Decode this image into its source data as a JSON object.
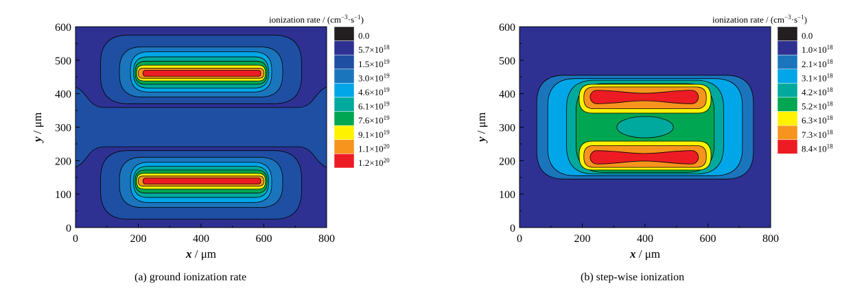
{
  "chart_data": [
    {
      "type": "contour",
      "caption": "(a)  ground ionization rate",
      "xlabel": {
        "italic": "x",
        "rest": " / μm"
      },
      "ylabel": {
        "italic": "y",
        "rest": " / μm"
      },
      "xlim": [
        0,
        800
      ],
      "ylim": [
        0,
        600
      ],
      "xticks": [
        "0",
        "200",
        "400",
        "600",
        "800"
      ],
      "yticks": [
        "0",
        "100",
        "200",
        "300",
        "400",
        "500",
        "600"
      ],
      "colorbar": {
        "title": "ionization rate / (cm",
        "title_sup1": "−3",
        "title_mid": "·s",
        "title_sup2": "−1",
        "title_end": ")",
        "colors": [
          "#231f20",
          "#2e3192",
          "#1f4fa3",
          "#1b75bc",
          "#00a6e8",
          "#00a99d",
          "#00a651",
          "#fff200",
          "#f7941d",
          "#ed1c24"
        ],
        "levels": [
          {
            "mant": "0.0",
            "exp": ""
          },
          {
            "mant": "5.7",
            "exp": "18"
          },
          {
            "mant": "1.5",
            "exp": "19"
          },
          {
            "mant": "3.0",
            "exp": "19"
          },
          {
            "mant": "4.6",
            "exp": "19"
          },
          {
            "mant": "6.1",
            "exp": "19"
          },
          {
            "mant": "7.6",
            "exp": "19"
          },
          {
            "mant": "9.1",
            "exp": "19"
          },
          {
            "mant": "1.1",
            "exp": "20"
          },
          {
            "mant": "1.2",
            "exp": "20"
          }
        ]
      },
      "regions": [
        {
          "level": 2,
          "x0": 0,
          "x1": 800,
          "y0": 180,
          "y1": 420,
          "side_notch": true
        },
        {
          "level": 2,
          "x0": 80,
          "x1": 720,
          "y0": 25,
          "y1": 230
        },
        {
          "level": 2,
          "x0": 80,
          "x1": 720,
          "y0": 370,
          "y1": 575
        },
        {
          "level": 3,
          "x0": 140,
          "x1": 660,
          "y0": 60,
          "y1": 210
        },
        {
          "level": 4,
          "x0": 175,
          "x1": 625,
          "y0": 75,
          "y1": 195
        },
        {
          "level": 5,
          "x0": 185,
          "x1": 615,
          "y0": 90,
          "y1": 183
        },
        {
          "level": 6,
          "x0": 190,
          "x1": 610,
          "y0": 103,
          "y1": 172
        },
        {
          "level": 7,
          "x0": 195,
          "x1": 605,
          "y0": 115,
          "y1": 162
        },
        {
          "level": 8,
          "x0": 200,
          "x1": 600,
          "y0": 124,
          "y1": 154
        },
        {
          "level": 9,
          "x0": 215,
          "x1": 590,
          "y0": 130,
          "y1": 148
        },
        {
          "level": 3,
          "x0": 140,
          "x1": 660,
          "y0": 390,
          "y1": 540
        },
        {
          "level": 4,
          "x0": 175,
          "x1": 625,
          "y0": 405,
          "y1": 525
        },
        {
          "level": 5,
          "x0": 185,
          "x1": 615,
          "y0": 417,
          "y1": 510
        },
        {
          "level": 6,
          "x0": 190,
          "x1": 610,
          "y0": 428,
          "y1": 497
        },
        {
          "level": 7,
          "x0": 195,
          "x1": 605,
          "y0": 438,
          "y1": 485
        },
        {
          "level": 8,
          "x0": 200,
          "x1": 600,
          "y0": 446,
          "y1": 476
        },
        {
          "level": 9,
          "x0": 215,
          "x1": 590,
          "y0": 452,
          "y1": 470
        }
      ]
    },
    {
      "type": "contour",
      "caption": "(b) step-wise ionization",
      "xlabel": {
        "italic": "x",
        "rest": " / μm"
      },
      "ylabel": {
        "italic": "y",
        "rest": " / μm"
      },
      "xlim": [
        0,
        800
      ],
      "ylim": [
        0,
        600
      ],
      "xticks": [
        "0",
        "200",
        "400",
        "600",
        "800"
      ],
      "yticks": [
        "0",
        "100",
        "200",
        "300",
        "400",
        "500",
        "600"
      ],
      "colorbar": {
        "title": "ionization rate / (cm",
        "title_sup1": "−3",
        "title_mid": "·s",
        "title_sup2": "−1",
        "title_end": ")",
        "colors": [
          "#231f20",
          "#2e3192",
          "#1b75bc",
          "#00a6e8",
          "#00a99d",
          "#00a651",
          "#fff200",
          "#f7941d",
          "#ed1c24"
        ],
        "levels": [
          {
            "mant": "0.0",
            "exp": ""
          },
          {
            "mant": "1.0",
            "exp": "18"
          },
          {
            "mant": "2.1",
            "exp": "18"
          },
          {
            "mant": "3.1",
            "exp": "18"
          },
          {
            "mant": "4.2",
            "exp": "18"
          },
          {
            "mant": "5.2",
            "exp": "18"
          },
          {
            "mant": "6.3",
            "exp": "18"
          },
          {
            "mant": "7.3",
            "exp": "18"
          },
          {
            "mant": "8.4",
            "exp": "18"
          }
        ]
      },
      "regions": [
        {
          "level": 2,
          "x0": 55,
          "x1": 745,
          "y0": 145,
          "y1": 455
        },
        {
          "level": 3,
          "x0": 90,
          "x1": 710,
          "y0": 155,
          "y1": 445
        },
        {
          "level": 4,
          "x0": 150,
          "x1": 650,
          "y0": 160,
          "y1": 440
        },
        {
          "level": 5,
          "x0": 180,
          "x1": 620,
          "y0": 165,
          "y1": 430
        },
        {
          "level": 6,
          "x0": 190,
          "x1": 610,
          "y0": 172,
          "y1": 258
        },
        {
          "level": 7,
          "x0": 205,
          "x1": 595,
          "y0": 180,
          "y1": 245
        },
        {
          "level": 8,
          "x0": 225,
          "x1": 570,
          "y0": 190,
          "y1": 230,
          "pinch": true
        },
        {
          "level": 6,
          "x0": 190,
          "x1": 610,
          "y0": 342,
          "y1": 428
        },
        {
          "level": 7,
          "x0": 205,
          "x1": 595,
          "y0": 355,
          "y1": 420
        },
        {
          "level": 8,
          "x0": 225,
          "x1": 570,
          "y0": 370,
          "y1": 410,
          "pinch": true
        },
        {
          "level": 4,
          "x0": 310,
          "x1": 490,
          "y0": 268,
          "y1": 332,
          "ellipse": true
        }
      ]
    }
  ]
}
